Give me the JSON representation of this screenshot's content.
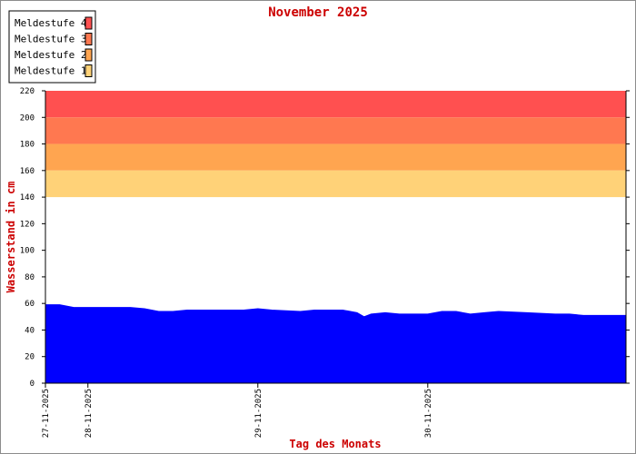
{
  "chart_data": {
    "type": "area",
    "title": "November 2025",
    "xlabel": "Tag des Monats",
    "ylabel": "Wasserstand in cm",
    "ylim": [
      0,
      220
    ],
    "yticks": [
      0,
      20,
      40,
      60,
      80,
      100,
      120,
      140,
      160,
      180,
      200,
      220
    ],
    "xlim": [
      "2025-11-27 00:00",
      "2025-11-30 10:00"
    ],
    "xticks": [
      {
        "label": "27-11-2025",
        "at": "2025-11-27 00:00"
      },
      {
        "label": "28-11-2025",
        "at": "2025-11-27 06:00"
      },
      {
        "label": "29-11-2025",
        "at": "2025-11-28 06:00"
      },
      {
        "label": "30-11-2025",
        "at": "2025-11-29 06:00"
      }
    ],
    "levels": [
      {
        "name": "Meldestufe 4",
        "from": 200,
        "to": 220,
        "color": "#ff5050"
      },
      {
        "name": "Meldestufe 3",
        "from": 180,
        "to": 200,
        "color": "#ff7850"
      },
      {
        "name": "Meldestufe 2",
        "from": 160,
        "to": 180,
        "color": "#ffa550"
      },
      {
        "name": "Meldestufe 1",
        "from": 140,
        "to": 160,
        "color": "#ffd278"
      }
    ],
    "legend_placement": "top-left",
    "grid": false,
    "series": [
      {
        "color": "#0000ff",
        "points": [
          [
            "2025-11-27 00:00",
            59
          ],
          [
            "2025-11-27 02:00",
            59
          ],
          [
            "2025-11-27 03:00",
            58
          ],
          [
            "2025-11-27 04:00",
            57
          ],
          [
            "2025-11-27 12:00",
            57
          ],
          [
            "2025-11-27 14:00",
            56
          ],
          [
            "2025-11-27 16:00",
            54
          ],
          [
            "2025-11-27 18:00",
            54
          ],
          [
            "2025-11-27 20:00",
            55
          ],
          [
            "2025-11-28 00:00",
            55
          ],
          [
            "2025-11-28 04:00",
            55
          ],
          [
            "2025-11-28 06:00",
            56
          ],
          [
            "2025-11-28 08:00",
            55
          ],
          [
            "2025-11-28 12:00",
            54
          ],
          [
            "2025-11-28 14:00",
            55
          ],
          [
            "2025-11-28 18:00",
            55
          ],
          [
            "2025-11-28 20:00",
            53
          ],
          [
            "2025-11-28 21:00",
            50
          ],
          [
            "2025-11-28 22:00",
            52
          ],
          [
            "2025-11-29 00:00",
            53
          ],
          [
            "2025-11-29 02:00",
            52
          ],
          [
            "2025-11-29 06:00",
            52
          ],
          [
            "2025-11-29 08:00",
            54
          ],
          [
            "2025-11-29 10:00",
            54
          ],
          [
            "2025-11-29 12:00",
            52
          ],
          [
            "2025-11-29 14:00",
            53
          ],
          [
            "2025-11-29 16:00",
            54
          ],
          [
            "2025-11-29 20:00",
            53
          ],
          [
            "2025-11-30 00:00",
            52
          ],
          [
            "2025-11-30 02:00",
            52
          ],
          [
            "2025-11-30 04:00",
            51
          ],
          [
            "2025-11-30 06:00",
            51
          ],
          [
            "2025-11-30 10:00",
            51
          ]
        ]
      }
    ]
  }
}
